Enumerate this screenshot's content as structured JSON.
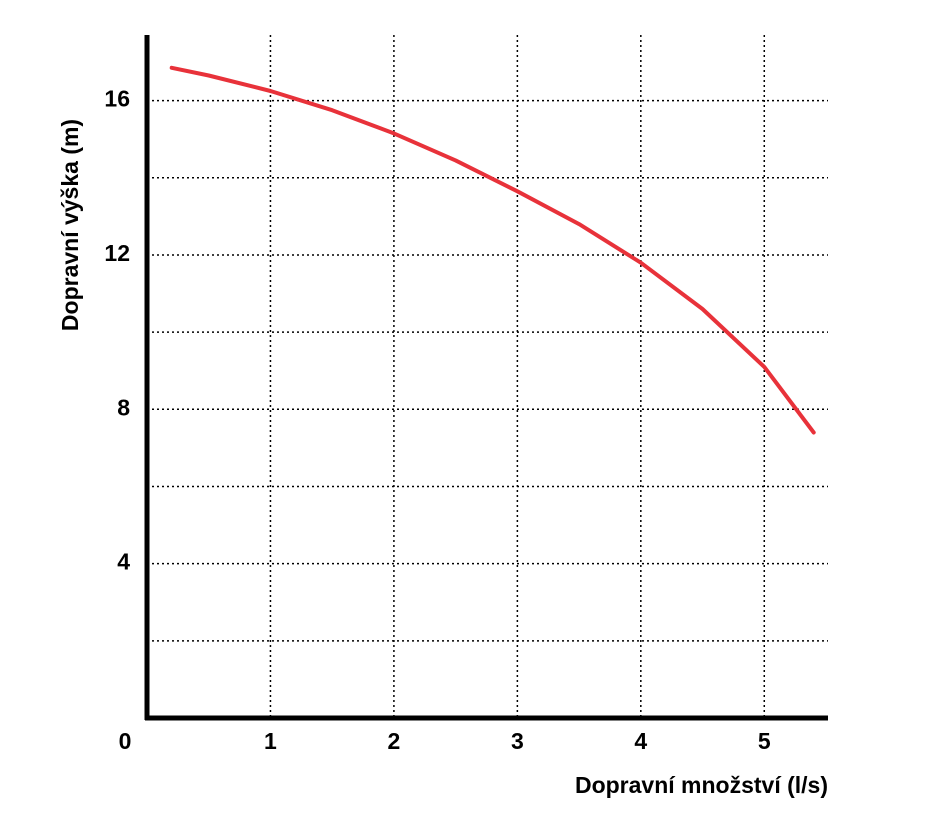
{
  "chart_data": {
    "type": "line",
    "x_label": "Dopravní množství (l/s)",
    "y_label": "Dopravní výška (m)",
    "x": [
      0.2,
      0.5,
      1,
      1.5,
      2,
      2.5,
      3,
      3.5,
      4,
      4.5,
      5,
      5.4
    ],
    "values": [
      16.85,
      16.65,
      16.25,
      15.75,
      15.15,
      14.45,
      13.65,
      12.8,
      11.8,
      10.6,
      9.1,
      7.4
    ],
    "color": "#e8323a",
    "xlim": [
      0,
      5.5
    ],
    "ylim": [
      0,
      17.7
    ],
    "xticks": [
      0,
      1,
      2,
      3,
      4,
      5
    ],
    "yticks": [
      4,
      8,
      12,
      16
    ],
    "yminor": [
      2,
      6,
      10,
      14
    ],
    "grid": true
  }
}
